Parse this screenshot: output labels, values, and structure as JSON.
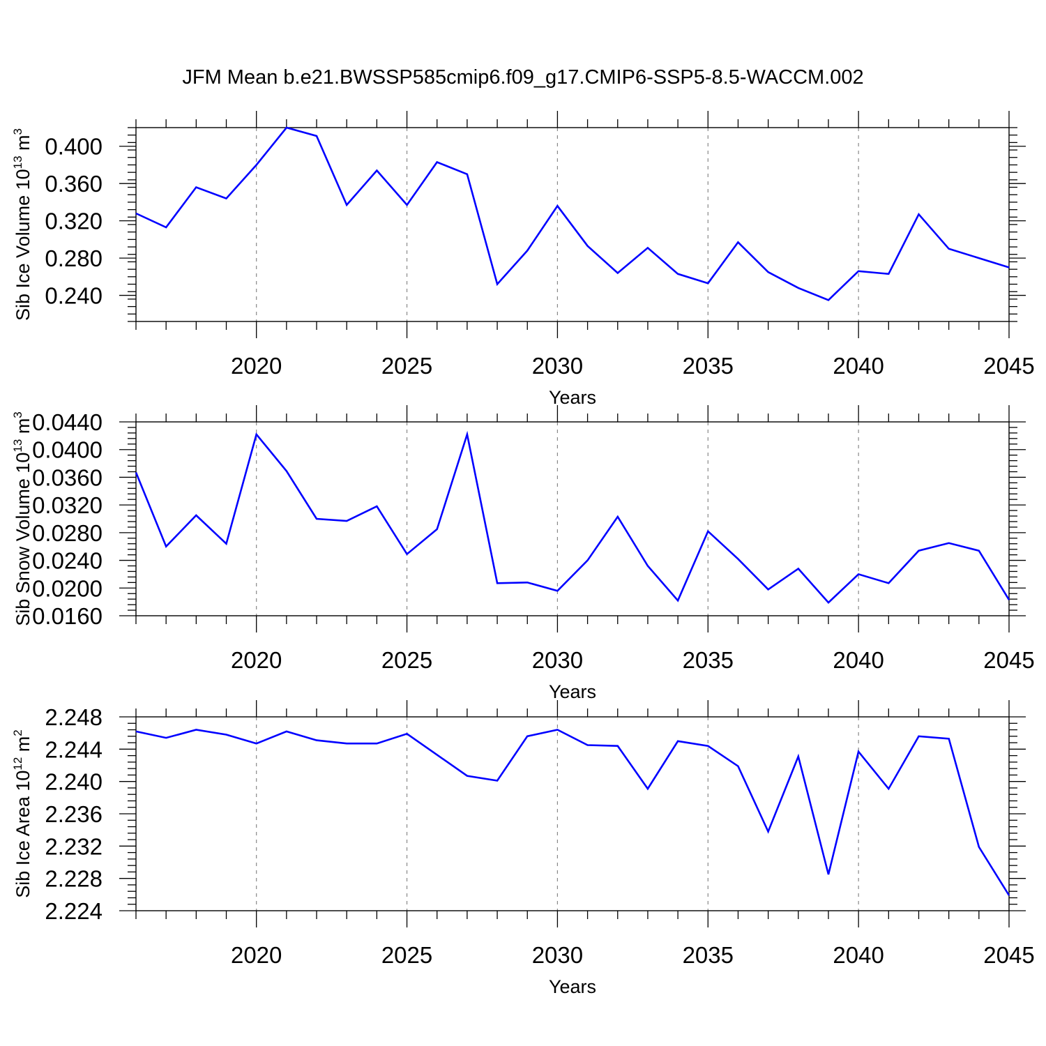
{
  "title": "JFM Mean b.e21.BWSSP585cmip6.f09_g17.CMIP6-SSP5-8.5-WACCM.002",
  "colors": {
    "line": "#0000ff",
    "axes": "#000000",
    "grid": "#888888",
    "background": "#ffffff"
  },
  "chart_data": [
    {
      "type": "line",
      "ylabel": "Sib Ice Volume 10",
      "ylabel_exp": "13",
      "ylabel_unit": " m",
      "ylabel_unit_exp": "3",
      "xlabel": "Years",
      "xlim": [
        2016,
        2045
      ],
      "ylim": [
        0.212,
        0.42
      ],
      "yticks": [
        0.24,
        0.28,
        0.32,
        0.36,
        0.4
      ],
      "ytick_labels": [
        "0.240",
        "0.280",
        "0.320",
        "0.360",
        "0.400"
      ],
      "yminor_step": 0.008,
      "xticks": [
        2020,
        2025,
        2030,
        2035,
        2040,
        2045
      ],
      "xtick_labels": [
        "2020",
        "2025",
        "2030",
        "2035",
        "2040",
        "2045"
      ],
      "grid_x": true,
      "x": [
        2016,
        2017,
        2018,
        2019,
        2020,
        2021,
        2022,
        2023,
        2024,
        2025,
        2026,
        2027,
        2028,
        2029,
        2030,
        2031,
        2032,
        2033,
        2034,
        2035,
        2036,
        2037,
        2038,
        2039,
        2040,
        2041,
        2042,
        2043,
        2044,
        2045
      ],
      "y": [
        0.328,
        0.313,
        0.356,
        0.344,
        0.38,
        0.42,
        0.411,
        0.337,
        0.374,
        0.337,
        0.383,
        0.37,
        0.252,
        0.288,
        0.336,
        0.293,
        0.264,
        0.291,
        0.263,
        0.253,
        0.297,
        0.265,
        0.248,
        0.235,
        0.266,
        0.263,
        0.327,
        0.29,
        0.28,
        0.27
      ]
    },
    {
      "type": "line",
      "ylabel": "Sib Snow Volume 10",
      "ylabel_exp": "13",
      "ylabel_unit": " m",
      "ylabel_unit_exp": "3",
      "xlabel": "Years",
      "xlim": [
        2016,
        2045
      ],
      "ylim": [
        0.016,
        0.044
      ],
      "yticks": [
        0.016,
        0.02,
        0.024,
        0.028,
        0.032,
        0.036,
        0.04,
        0.044
      ],
      "ytick_labels": [
        "0.0160",
        "0.0200",
        "0.0240",
        "0.0280",
        "0.0320",
        "0.0360",
        "0.0400",
        "0.0440"
      ],
      "yminor_step": 0.0008,
      "xticks": [
        2020,
        2025,
        2030,
        2035,
        2040,
        2045
      ],
      "xtick_labels": [
        "2020",
        "2025",
        "2030",
        "2035",
        "2040",
        "2045"
      ],
      "grid_x": true,
      "x": [
        2016,
        2017,
        2018,
        2019,
        2020,
        2021,
        2022,
        2023,
        2024,
        2025,
        2026,
        2027,
        2028,
        2029,
        2030,
        2031,
        2032,
        2033,
        2034,
        2035,
        2036,
        2037,
        2038,
        2039,
        2040,
        2041,
        2042,
        2043,
        2044,
        2045
      ],
      "y": [
        0.0367,
        0.026,
        0.0305,
        0.0264,
        0.0422,
        0.0369,
        0.03,
        0.0297,
        0.0318,
        0.0249,
        0.0285,
        0.0422,
        0.0207,
        0.0208,
        0.0196,
        0.024,
        0.0303,
        0.0232,
        0.0182,
        0.0282,
        0.0242,
        0.0198,
        0.0228,
        0.0179,
        0.022,
        0.0207,
        0.0254,
        0.0265,
        0.0254,
        0.0183
      ]
    },
    {
      "type": "line",
      "ylabel": "Sib Ice Area 10",
      "ylabel_exp": "12",
      "ylabel_unit": " m",
      "ylabel_unit_exp": "2",
      "xlabel": "Years",
      "xlim": [
        2016,
        2045
      ],
      "ylim": [
        2.224,
        2.248
      ],
      "yticks": [
        2.224,
        2.228,
        2.232,
        2.236,
        2.24,
        2.244,
        2.248
      ],
      "ytick_labels": [
        "2.224",
        "2.228",
        "2.232",
        "2.236",
        "2.240",
        "2.244",
        "2.248"
      ],
      "yminor_step": 0.0008,
      "xticks": [
        2020,
        2025,
        2030,
        2035,
        2040,
        2045
      ],
      "xtick_labels": [
        "2020",
        "2025",
        "2030",
        "2035",
        "2040",
        "2045"
      ],
      "grid_x": true,
      "x": [
        2016,
        2017,
        2018,
        2019,
        2020,
        2021,
        2022,
        2023,
        2024,
        2025,
        2026,
        2027,
        2028,
        2029,
        2030,
        2031,
        2032,
        2033,
        2034,
        2035,
        2036,
        2037,
        2038,
        2039,
        2040,
        2041,
        2042,
        2043,
        2044,
        2045
      ],
      "y": [
        2.2462,
        2.2454,
        2.2464,
        2.2458,
        2.2447,
        2.2462,
        2.2451,
        2.2447,
        2.2447,
        2.2459,
        2.2433,
        2.2407,
        2.2401,
        2.2456,
        2.2464,
        2.2445,
        2.2444,
        2.2391,
        2.245,
        2.2444,
        2.2419,
        2.2338,
        2.2431,
        2.2285,
        2.2437,
        2.2391,
        2.2456,
        2.2453,
        2.2319,
        2.2259
      ]
    }
  ]
}
